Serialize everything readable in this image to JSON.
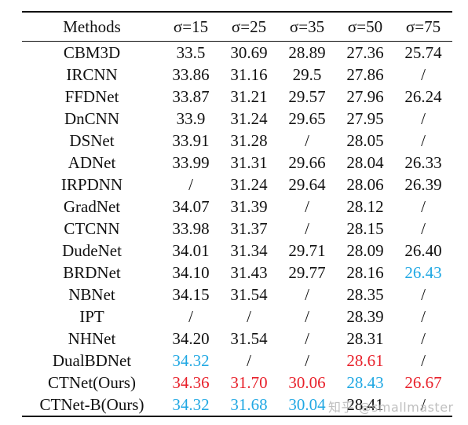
{
  "table": {
    "headers": [
      "Methods",
      "σ=15",
      "σ=25",
      "σ=35",
      "σ=50",
      "σ=75"
    ],
    "rows": [
      {
        "method": "CBM3D",
        "values": [
          "33.5",
          "30.69",
          "28.89",
          "27.36",
          "25.74"
        ]
      },
      {
        "method": "IRCNN",
        "values": [
          "33.86",
          "31.16",
          "29.5",
          "27.86",
          "/"
        ]
      },
      {
        "method": "FFDNet",
        "values": [
          "33.87",
          "31.21",
          "29.57",
          "27.96",
          "26.24"
        ]
      },
      {
        "method": "DnCNN",
        "values": [
          "33.9",
          "31.24",
          "29.65",
          "27.95",
          "/"
        ]
      },
      {
        "method": "DSNet",
        "values": [
          "33.91",
          "31.28",
          "/",
          "28.05",
          "/"
        ]
      },
      {
        "method": "ADNet",
        "values": [
          "33.99",
          "31.31",
          "29.66",
          "28.04",
          "26.33"
        ]
      },
      {
        "method": "IRPDNN",
        "values": [
          "/",
          "31.24",
          "29.64",
          "28.06",
          "26.39"
        ]
      },
      {
        "method": "GradNet",
        "values": [
          "34.07",
          "31.39",
          "/",
          "28.12",
          "/"
        ]
      },
      {
        "method": "CTCNN",
        "values": [
          "33.98",
          "31.37",
          "/",
          "28.15",
          "/"
        ]
      },
      {
        "method": "DudeNet",
        "values": [
          "34.01",
          "31.34",
          "29.71",
          "28.09",
          "26.40"
        ]
      },
      {
        "method": "BRDNet",
        "values": [
          "34.10",
          "31.43",
          "29.77",
          "28.16",
          "26.43"
        ]
      },
      {
        "method": "NBNet",
        "values": [
          "34.15",
          "31.54",
          "/",
          "28.35",
          "/"
        ]
      },
      {
        "method": "IPT",
        "values": [
          "/",
          "/",
          "/",
          "28.39",
          "/"
        ]
      },
      {
        "method": "NHNet",
        "values": [
          "34.20",
          "31.54",
          "/",
          "28.31",
          "/"
        ]
      },
      {
        "method": "DualBDNet",
        "values": [
          "34.32",
          "/",
          "/",
          "28.61",
          "/"
        ]
      },
      {
        "method": "CTNet(Ours)",
        "values": [
          "34.36",
          "31.70",
          "30.06",
          "28.43",
          "26.67"
        ]
      },
      {
        "method": "CTNet-B(Ours)",
        "values": [
          "34.32",
          "31.68",
          "30.04",
          "28.41",
          "/"
        ]
      }
    ],
    "highlights": {
      "red": "#e8212b",
      "blue": "#21a8e3",
      "cells": [
        {
          "row": 10,
          "col": 4,
          "color": "blue"
        },
        {
          "row": 14,
          "col": 0,
          "color": "blue"
        },
        {
          "row": 14,
          "col": 3,
          "color": "red"
        },
        {
          "row": 15,
          "col": 0,
          "color": "red"
        },
        {
          "row": 15,
          "col": 1,
          "color": "red"
        },
        {
          "row": 15,
          "col": 2,
          "color": "red"
        },
        {
          "row": 15,
          "col": 3,
          "color": "blue"
        },
        {
          "row": 15,
          "col": 4,
          "color": "red"
        },
        {
          "row": 16,
          "col": 0,
          "color": "blue"
        },
        {
          "row": 16,
          "col": 1,
          "color": "blue"
        },
        {
          "row": 16,
          "col": 2,
          "color": "blue"
        }
      ]
    }
  },
  "watermark": "知乎 @smallmaster"
}
